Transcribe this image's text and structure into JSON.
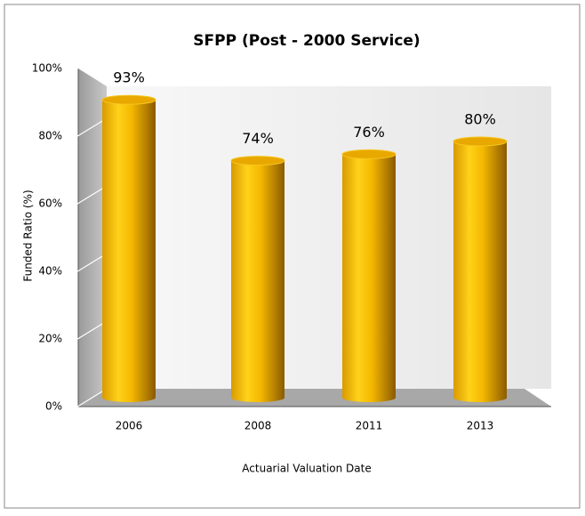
{
  "chart_data": {
    "type": "bar3d",
    "title": "SFPP (Post - 2000 Service)",
    "x_label": "Actuarial Valuation Date",
    "y_label": "Funded Ratio (%)",
    "categories": [
      "2006",
      "2008",
      "2011",
      "2013"
    ],
    "values": [
      93,
      74,
      76,
      80
    ],
    "value_labels": [
      "93%",
      "74%",
      "76%",
      "80%"
    ],
    "color": "#f5b800",
    "ylim": [
      0,
      100
    ],
    "yticks": [
      {
        "value": 0,
        "label": "0%"
      },
      {
        "value": 20,
        "label": "20%"
      },
      {
        "value": 40,
        "label": "40%"
      },
      {
        "value": 60,
        "label": "60%"
      },
      {
        "value": 80,
        "label": "80%"
      },
      {
        "value": 100,
        "label": "100%"
      }
    ]
  }
}
